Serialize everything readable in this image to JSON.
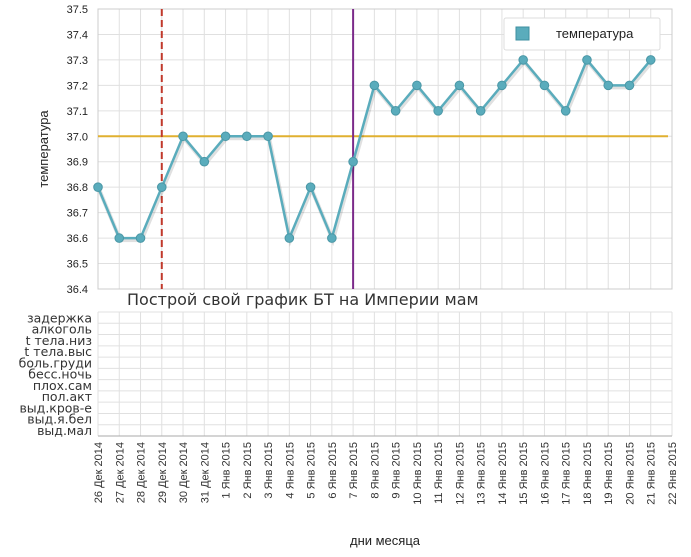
{
  "chart_data": {
    "type": "line",
    "ylabel": "температура",
    "xlabel": "дни месяца",
    "overlay_text": "Построй свой график БТ на Империи мам",
    "ylim": [
      36.4,
      37.5
    ],
    "yticks": [
      "36.4",
      "36.5",
      "36.6",
      "36.7",
      "36.8",
      "36.9",
      "37.0",
      "37.1",
      "37.2",
      "37.3",
      "37.4",
      "37.5"
    ],
    "grid": true,
    "legend": {
      "position": "top-right",
      "label": "температура"
    },
    "categories": [
      "26 Дек 2014",
      "27 Дек 2014",
      "28 Дек 2014",
      "29 Дек 2014",
      "30 Дек 2014",
      "31 Дек 2014",
      "1 Янв 2015",
      "2 Янв 2015",
      "3 Янв 2015",
      "4 Янв 2015",
      "5 Янв 2015",
      "6 Янв 2015",
      "7 Янв 2015",
      "8 Янв 2015",
      "9 Янв 2015",
      "10 Янв 2015",
      "11 Янв 2015",
      "12 Янв 2015",
      "13 Янв 2015",
      "14 Янв 2015",
      "15 Янв 2015",
      "16 Янв 2015",
      "17 Янв 2015",
      "18 Янв 2015",
      "19 Янв 2015",
      "20 Янв 2015",
      "21 Янв 2015",
      "22 Янв 2015"
    ],
    "series": [
      {
        "name": "температура",
        "color": "#5aacbc",
        "values": [
          36.8,
          36.6,
          36.6,
          36.8,
          37.0,
          36.9,
          37.0,
          37.0,
          37.0,
          36.6,
          36.8,
          36.6,
          36.9,
          37.2,
          37.1,
          37.2,
          37.1,
          37.2,
          37.1,
          37.2,
          37.3,
          37.2,
          37.1,
          37.3,
          37.2,
          37.2,
          37.3,
          null
        ]
      }
    ],
    "reference_line": {
      "value": 37.0,
      "color": "#e0b030"
    },
    "markers": [
      {
        "category": "29 Дек 2014",
        "style": "dashed",
        "color": "#c0392b"
      },
      {
        "category": "7 Янв 2015",
        "style": "solid",
        "color": "#7b2a8a"
      }
    ],
    "symptoms": [
      "задержка",
      "алкоголь",
      "t тела.низ",
      "t тела.выс",
      "боль.груди",
      "бесс.ночь",
      "плох.сам",
      "пол.акт",
      "выд.кров-е",
      "выд.я.бел",
      "выд.мал"
    ]
  }
}
